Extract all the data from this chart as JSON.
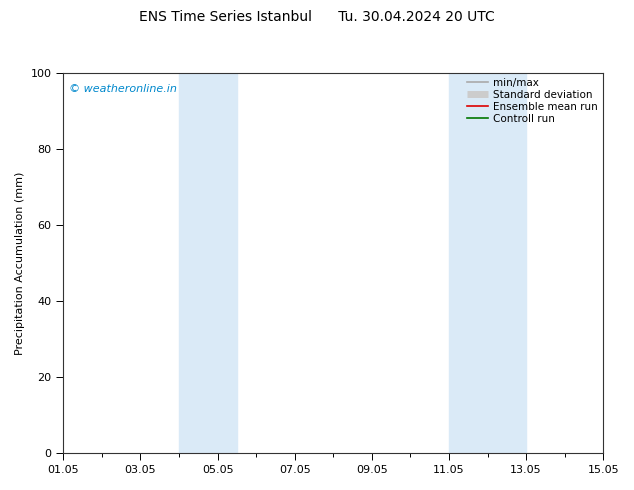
{
  "title": "ENS Time Series Istanbul      Tu. 30.04.2024 20 UTC",
  "ylabel": "Precipitation Accumulation (mm)",
  "watermark": "© weatheronline.in",
  "ylim": [
    0,
    100
  ],
  "xlim": [
    0,
    14
  ],
  "xtick_labels": [
    "01.05",
    "03.05",
    "05.05",
    "07.05",
    "09.05",
    "11.05",
    "13.05",
    "15.05"
  ],
  "xtick_positions": [
    0,
    2,
    4,
    6,
    8,
    10,
    12,
    14
  ],
  "ytick_labels": [
    "0",
    "20",
    "40",
    "60",
    "80",
    "100"
  ],
  "ytick_positions": [
    0,
    20,
    40,
    60,
    80,
    100
  ],
  "shaded_regions": [
    {
      "xmin": 3.0,
      "xmax": 4.5,
      "color": "#daeaf7"
    },
    {
      "xmin": 10.0,
      "xmax": 12.0,
      "color": "#daeaf7"
    }
  ],
  "bg_color": "#ffffff",
  "plot_bg_color": "#ffffff",
  "legend_items": [
    {
      "label": "min/max",
      "color": "#aaaaaa",
      "lw": 1.2
    },
    {
      "label": "Standard deviation",
      "color": "#cccccc",
      "lw": 5
    },
    {
      "label": "Ensemble mean run",
      "color": "#dd0000",
      "lw": 1.2
    },
    {
      "label": "Controll run",
      "color": "#007700",
      "lw": 1.2
    }
  ],
  "watermark_color": "#0088cc",
  "title_fontsize": 10,
  "axis_fontsize": 8,
  "tick_fontsize": 8,
  "legend_fontsize": 7.5
}
